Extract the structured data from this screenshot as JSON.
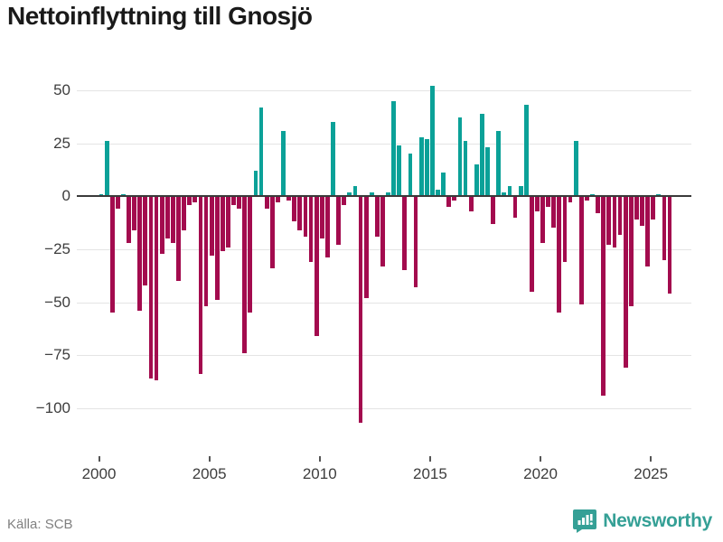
{
  "title": "Nettoinflyttning till Gnosjö",
  "source": "Källa: SCB",
  "brand": {
    "name": "Newsworthy"
  },
  "colors": {
    "positive_bar": "#0ba198",
    "negative_bar": "#a30b4e",
    "grid": "#e4e4e4",
    "zero_line": "#3a3a3a",
    "axis_text": "#3d3d3d",
    "title_text": "#1a1a1a",
    "source_text": "#808080",
    "brand_teal": "#35a096"
  },
  "chart_data": {
    "type": "bar",
    "title": "Nettoinflyttning till Gnosjö",
    "xlabel": "",
    "ylabel": "",
    "x_tick_labels": [
      "2000",
      "2005",
      "2010",
      "2015",
      "2020",
      "2025"
    ],
    "y_tick_labels": [
      "50",
      "25",
      "0",
      "−25",
      "−50",
      "−75",
      "−100"
    ],
    "y_ticks": [
      50,
      25,
      0,
      -25,
      -50,
      -75,
      -100
    ],
    "ylim": [
      -112,
      55
    ],
    "grid": true,
    "legend": "none",
    "categories": [
      "2000Q1",
      "2000Q2",
      "2000Q3",
      "2000Q4",
      "2001Q1",
      "2001Q2",
      "2001Q3",
      "2001Q4",
      "2002Q1",
      "2002Q2",
      "2002Q3",
      "2002Q4",
      "2003Q1",
      "2003Q2",
      "2003Q3",
      "2003Q4",
      "2004Q1",
      "2004Q2",
      "2004Q3",
      "2004Q4",
      "2005Q1",
      "2005Q2",
      "2005Q3",
      "2005Q4",
      "2006Q1",
      "2006Q2",
      "2006Q3",
      "2006Q4",
      "2007Q1",
      "2007Q2",
      "2007Q3",
      "2007Q4",
      "2008Q1",
      "2008Q2",
      "2008Q3",
      "2008Q4",
      "2009Q1",
      "2009Q2",
      "2009Q3",
      "2009Q4",
      "2010Q1",
      "2010Q2",
      "2010Q3",
      "2010Q4",
      "2011Q1",
      "2011Q2",
      "2011Q3",
      "2011Q4",
      "2012Q1",
      "2012Q2",
      "2012Q3",
      "2012Q4",
      "2013Q1",
      "2013Q2",
      "2013Q3",
      "2013Q4",
      "2014Q1",
      "2014Q2",
      "2014Q3",
      "2014Q4",
      "2015Q1",
      "2015Q2",
      "2015Q3",
      "2015Q4",
      "2016Q1",
      "2016Q2",
      "2016Q3",
      "2016Q4",
      "2017Q1",
      "2017Q2",
      "2017Q3",
      "2017Q4",
      "2018Q1",
      "2018Q2",
      "2018Q3",
      "2018Q4",
      "2019Q1",
      "2019Q2",
      "2019Q3",
      "2019Q4",
      "2020Q1",
      "2020Q2",
      "2020Q3",
      "2020Q4",
      "2021Q1",
      "2021Q2",
      "2021Q3",
      "2021Q4",
      "2022Q1",
      "2022Q2",
      "2022Q3",
      "2022Q4",
      "2023Q1",
      "2023Q2",
      "2023Q3",
      "2023Q4",
      "2024Q1",
      "2024Q2",
      "2024Q3",
      "2024Q4",
      "2025Q1",
      "2025Q2",
      "2025Q3",
      "2025Q4"
    ],
    "values": [
      1,
      26,
      -55,
      -6,
      1,
      -22,
      -16,
      -54,
      -42,
      -86,
      -87,
      -27,
      -20,
      -22,
      -40,
      -16,
      -4,
      -3,
      -84,
      -52,
      -28,
      -49,
      -26,
      -24,
      -4,
      -6,
      -74,
      -55,
      12,
      42,
      -6,
      -34,
      -3,
      31,
      -2,
      -12,
      -16,
      -19,
      -31,
      -66,
      -20,
      -29,
      35,
      -23,
      -4,
      2,
      5,
      -107,
      -48,
      2,
      -19,
      -33,
      2,
      45,
      24,
      -35,
      20,
      -43,
      28,
      27,
      52,
      3,
      11,
      -5,
      -2,
      37,
      26,
      -7,
      15,
      39,
      23,
      -13,
      31,
      2,
      5,
      -10,
      5,
      43,
      -45,
      -7,
      -22,
      -5,
      -15,
      -55,
      -31,
      -3,
      26,
      -51,
      -2,
      1,
      -8,
      -94,
      -23,
      -24,
      -18,
      -81,
      -52,
      -11,
      -14,
      -33,
      -11,
      1,
      -30,
      -46
    ]
  }
}
